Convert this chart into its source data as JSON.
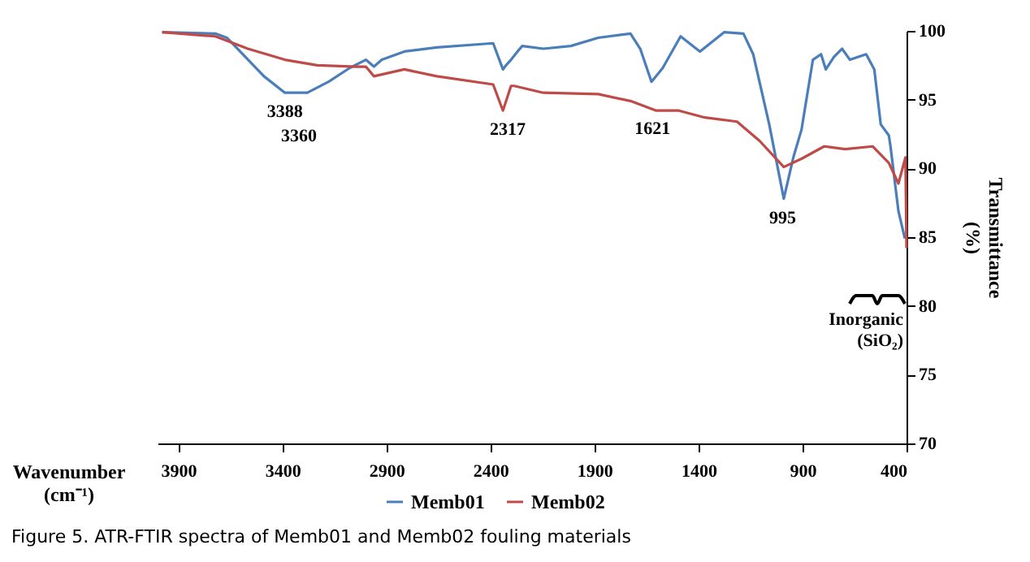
{
  "chart_data": {
    "type": "line",
    "xlabel": "Wavenumber (cm⁻¹)",
    "ylabel": "Transmittance (%)",
    "xlim": [
      4000,
      400
    ],
    "xticks": [
      3900,
      3400,
      2900,
      2400,
      1900,
      1400,
      900,
      400
    ],
    "ylim": [
      70,
      100
    ],
    "yticks": [
      70,
      75,
      80,
      85,
      90,
      95,
      100
    ],
    "grid": false,
    "legend": "bottom",
    "marker": "none",
    "line_style": "solid",
    "series": [
      {
        "name": "Memb01",
        "color": "#4a7ebb",
        "x": [
          3978,
          3720,
          3667,
          3590,
          3489,
          3388,
          3280,
          3178,
          3077,
          2999,
          2960,
          2922,
          2814,
          2658,
          2387,
          2340,
          2325,
          2301,
          2270,
          2247,
          2146,
          2014,
          1882,
          1727,
          1680,
          1626,
          1572,
          1486,
          1393,
          1277,
          1184,
          1137,
          1060,
          990,
          944,
          905,
          850,
          811,
          788,
          749,
          710,
          672,
          594,
          555,
          524,
          485,
          477,
          439,
          408
        ],
        "values": [
          99.9,
          99.8,
          99.5,
          98.3,
          96.7,
          95.5,
          95.5,
          96.3,
          97.3,
          97.9,
          97.4,
          97.9,
          98.5,
          98.8,
          99.1,
          97.2,
          97.5,
          97.9,
          98.5,
          98.9,
          98.7,
          98.9,
          99.5,
          99.8,
          98.7,
          96.3,
          97.3,
          99.6,
          98.5,
          99.9,
          99.8,
          98.3,
          93.2,
          87.8,
          90.8,
          92.8,
          97.9,
          98.3,
          97.2,
          98.1,
          98.7,
          97.9,
          98.3,
          97.2,
          93.2,
          92.4,
          91.6,
          86.9,
          84.9
        ]
      },
      {
        "name": "Memb02",
        "color": "#be4b48",
        "x": [
          3978,
          3722,
          3566,
          3388,
          3233,
          3046,
          2999,
          2960,
          2814,
          2658,
          2387,
          2340,
          2301,
          2286,
          2146,
          1882,
          1727,
          1603,
          1494,
          1370,
          1215,
          1106,
          990,
          905,
          796,
          695,
          563,
          485,
          439,
          405,
          400
        ],
        "values": [
          99.9,
          99.6,
          98.7,
          97.9,
          97.5,
          97.4,
          97.4,
          96.7,
          97.2,
          96.7,
          96.1,
          94.2,
          96.0,
          96.0,
          95.5,
          95.4,
          94.9,
          94.2,
          94.2,
          93.7,
          93.4,
          92.0,
          90.1,
          90.7,
          91.6,
          91.4,
          91.6,
          90.4,
          88.9,
          90.8,
          84.2
        ]
      }
    ],
    "annotations": [
      {
        "text": "3388",
        "x": 3388,
        "y": 95.5
      },
      "3360",
      {
        "text": "2317",
        "x": 2317,
        "y": 94.2
      },
      {
        "text": "1621",
        "x": 1621,
        "y": 94.3
      },
      {
        "text": "995",
        "x": 995,
        "y": 87.8
      },
      "Inorganic (SiO₂)",
      "Figure 5. ATR-FTIR spectra of Memb01 and Memb02 fouling materials"
    ]
  }
}
